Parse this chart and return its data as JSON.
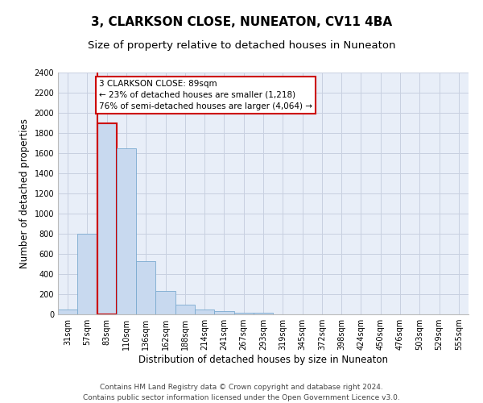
{
  "title": "3, CLARKSON CLOSE, NUNEATON, CV11 4BA",
  "subtitle": "Size of property relative to detached houses in Nuneaton",
  "xlabel": "Distribution of detached houses by size in Nuneaton",
  "ylabel": "Number of detached properties",
  "categories": [
    "31sqm",
    "57sqm",
    "83sqm",
    "110sqm",
    "136sqm",
    "162sqm",
    "188sqm",
    "214sqm",
    "241sqm",
    "267sqm",
    "293sqm",
    "319sqm",
    "345sqm",
    "372sqm",
    "398sqm",
    "424sqm",
    "450sqm",
    "476sqm",
    "503sqm",
    "529sqm",
    "555sqm"
  ],
  "values": [
    50,
    800,
    1900,
    1650,
    530,
    230,
    100,
    50,
    30,
    15,
    15,
    0,
    0,
    0,
    0,
    0,
    0,
    0,
    0,
    0,
    0
  ],
  "bar_color": "#c8d9ef",
  "bar_edge_color": "#7aaad0",
  "highlight_bar_index": 2,
  "highlight_edge_color": "#cc0000",
  "vline_color": "#cc0000",
  "annotation_text": "3 CLARKSON CLOSE: 89sqm\n← 23% of detached houses are smaller (1,218)\n76% of semi-detached houses are larger (4,064) →",
  "annotation_box_color": "#ffffff",
  "annotation_box_edge_color": "#cc0000",
  "ylim": [
    0,
    2400
  ],
  "yticks": [
    0,
    200,
    400,
    600,
    800,
    1000,
    1200,
    1400,
    1600,
    1800,
    2000,
    2200,
    2400
  ],
  "footer_line1": "Contains HM Land Registry data © Crown copyright and database right 2024.",
  "footer_line2": "Contains public sector information licensed under the Open Government Licence v3.0.",
  "bg_color": "#ffffff",
  "plot_bg_color": "#e8eef8",
  "grid_color": "#c8d0e0",
  "title_fontsize": 11,
  "subtitle_fontsize": 9.5,
  "axis_label_fontsize": 8.5,
  "tick_fontsize": 7,
  "annotation_fontsize": 7.5,
  "footer_fontsize": 6.5
}
